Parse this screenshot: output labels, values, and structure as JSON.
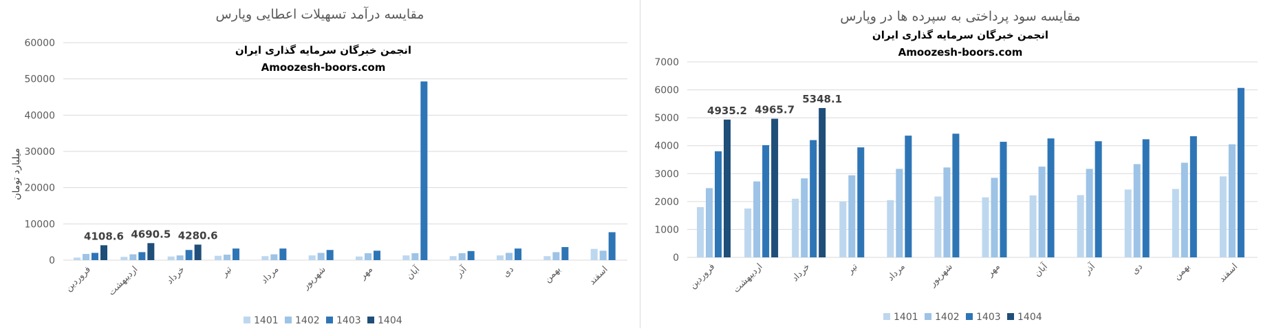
{
  "colors": {
    "1401": "#bdd7ee",
    "1402": "#9dc3e6",
    "1403": "#2e75b6",
    "1404": "#1f4e79",
    "grid": "#d9d9d9",
    "text": "#595959"
  },
  "chart_data": [
    {
      "type": "bar",
      "title": "مقایسه درآمد تسهیلات اعطایی وپارس",
      "watermark": {
        "line1": "انجمن خبرگان سرمایه گذاری ایران",
        "line2": "Amoozesh-boors.com"
      },
      "ylabel": "میلیارد تومان",
      "xlabel": "",
      "ylim": [
        0,
        60000
      ],
      "yticks": [
        "0",
        "10000",
        "20000",
        "30000",
        "40000",
        "50000",
        "60000"
      ],
      "grid": true,
      "legend_position": "bottom",
      "categories": [
        "فروردین",
        "اردیبهشت",
        "خرداد",
        "تیر",
        "مرداد",
        "شهریور",
        "مهر",
        "آبان",
        "آذر",
        "دی",
        "بهمن",
        "اسفند"
      ],
      "series": [
        {
          "name": "1401",
          "values": [
            700,
            900,
            1000,
            1200,
            1100,
            1300,
            1000,
            1300,
            1100,
            1300,
            1100,
            3100
          ]
        },
        {
          "name": "1402",
          "values": [
            1700,
            1600,
            1300,
            1500,
            1600,
            2000,
            1900,
            1900,
            1900,
            2000,
            2200,
            2600
          ]
        },
        {
          "name": "1403",
          "values": [
            2000,
            2200,
            2800,
            3200,
            3200,
            2800,
            2600,
            49300,
            2500,
            3200,
            3600,
            7700
          ]
        },
        {
          "name": "1404",
          "values": [
            4108.6,
            4690.5,
            4280.6,
            null,
            null,
            null,
            null,
            null,
            null,
            null,
            null,
            null
          ]
        }
      ],
      "data_labels": [
        {
          "category_index": 0,
          "series": "1404",
          "text": "4108.6"
        },
        {
          "category_index": 1,
          "series": "1404",
          "text": "4690.5"
        },
        {
          "category_index": 2,
          "series": "1404",
          "text": "4280.6"
        }
      ]
    },
    {
      "type": "bar",
      "title": "مقایسه سود پرداختی به سپرده ها در وپارس",
      "watermark": {
        "line1": "انجمن خبرگان سرمایه گذاری ایران",
        "line2": "Amoozesh-boors.com"
      },
      "ylabel": "",
      "xlabel": "",
      "ylim": [
        0,
        7000
      ],
      "yticks": [
        "0",
        "1000",
        "2000",
        "3000",
        "4000",
        "5000",
        "6000",
        "7000"
      ],
      "grid": true,
      "legend_position": "bottom",
      "categories": [
        "فروردین",
        "اردیبهشت",
        "خرداد",
        "تیر",
        "مرداد",
        "شهریور",
        "مهر",
        "آبان",
        "آذر",
        "دی",
        "بهمن",
        "اسفند"
      ],
      "series": [
        {
          "name": "1401",
          "values": [
            1800,
            1750,
            2100,
            2000,
            2050,
            2180,
            2150,
            2220,
            2230,
            2430,
            2450,
            2900
          ]
        },
        {
          "name": "1402",
          "values": [
            2480,
            2720,
            2830,
            2940,
            3170,
            3220,
            2850,
            3250,
            3170,
            3340,
            3390,
            4050
          ]
        },
        {
          "name": "1403",
          "values": [
            3800,
            4020,
            4200,
            3940,
            4360,
            4430,
            4140,
            4260,
            4160,
            4230,
            4340,
            6070
          ]
        },
        {
          "name": "1404",
          "values": [
            4935.2,
            4965.7,
            5348.1,
            null,
            null,
            null,
            null,
            null,
            null,
            null,
            null,
            null
          ]
        }
      ],
      "data_labels": [
        {
          "category_index": 0,
          "series": "1404",
          "text": "4935.2"
        },
        {
          "category_index": 1,
          "series": "1404",
          "text": "4965.7"
        },
        {
          "category_index": 2,
          "series": "1404",
          "text": "5348.1"
        }
      ]
    }
  ]
}
